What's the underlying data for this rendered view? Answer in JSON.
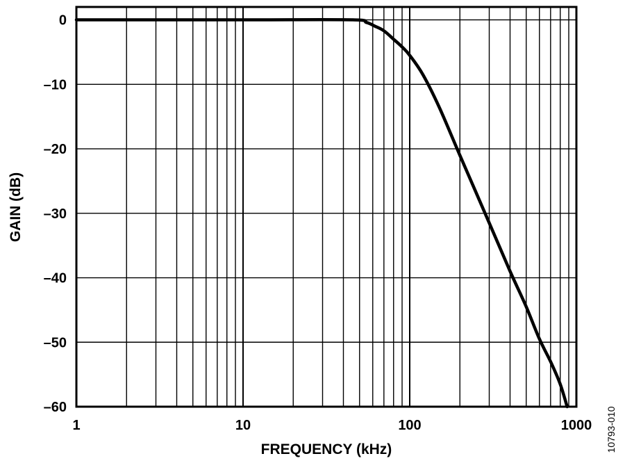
{
  "chart_data": {
    "type": "line",
    "title": "",
    "xlabel": "FREQUENCY (kHz)",
    "ylabel": "GAIN (dB)",
    "x_scale": "log",
    "xlim": [
      1,
      1000
    ],
    "ylim": [
      -60,
      2
    ],
    "x_ticks": [
      "1",
      "10",
      "100",
      "1000"
    ],
    "y_ticks": [
      "0",
      "–10",
      "–20",
      "–30",
      "–40",
      "–50",
      "–60"
    ],
    "grid": true,
    "legend": "none",
    "series": [
      {
        "name": "",
        "color": "#000000",
        "x": [
          1,
          10,
          45,
          55,
          62,
          70,
          80,
          90,
          100,
          120,
          150,
          200,
          300,
          400,
          500,
          600,
          700,
          800,
          880
        ],
        "y": [
          0,
          0,
          0,
          -0.4,
          -1.0,
          -1.7,
          -3.0,
          -4.2,
          -5.5,
          -8.5,
          -13.5,
          -21,
          -31.5,
          -39,
          -44.5,
          -49.5,
          -53,
          -56.5,
          -60
        ]
      }
    ]
  },
  "figure_id": "10793-010"
}
